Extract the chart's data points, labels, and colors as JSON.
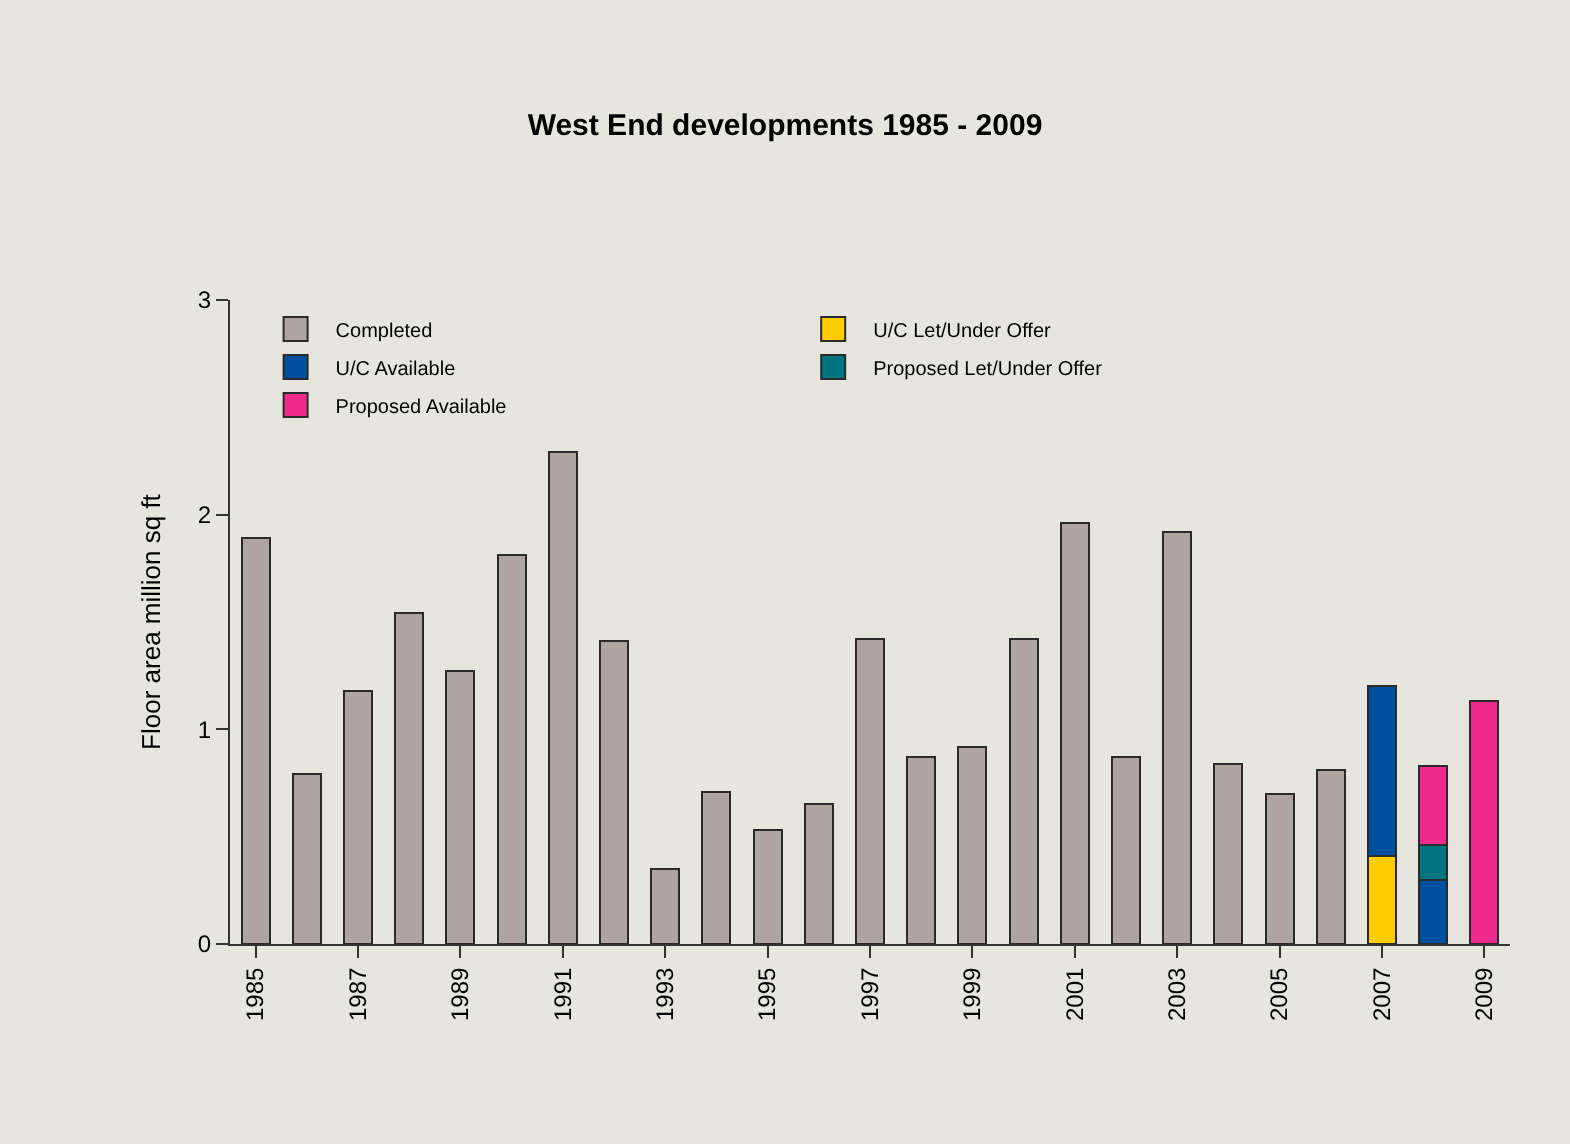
{
  "chart_data": {
    "type": "bar",
    "title": "West End developments 1985 - 2009",
    "ylabel": "Floor area million sq ft",
    "categories": [
      "1985",
      null,
      "1987",
      null,
      "1989",
      null,
      "1991",
      null,
      "1993",
      null,
      "1995",
      null,
      "1997",
      null,
      "1999",
      null,
      "2001",
      null,
      "2003",
      null,
      "2005",
      null,
      "2007",
      null,
      "2009"
    ],
    "stacked": true,
    "series": [
      {
        "name": "Completed",
        "color": "#aea5a1",
        "values": [
          1.89,
          0.79,
          1.18,
          1.54,
          1.27,
          1.81,
          2.29,
          1.41,
          0.35,
          0.71,
          0.53,
          0.65,
          1.42,
          0.87,
          0.92,
          1.42,
          1.96,
          0.87,
          1.92,
          0.84,
          0.7,
          0.81,
          null,
          null,
          null
        ]
      },
      {
        "name": "U/C Let/Under Offer",
        "color": "#ffcc00",
        "values": [
          null,
          null,
          null,
          null,
          null,
          null,
          null,
          null,
          null,
          null,
          null,
          null,
          null,
          null,
          null,
          null,
          null,
          null,
          null,
          null,
          null,
          null,
          0.41,
          null,
          null
        ]
      },
      {
        "name": "U/C Available",
        "color": "#0050a0",
        "values": [
          null,
          null,
          null,
          null,
          null,
          null,
          null,
          null,
          null,
          null,
          null,
          null,
          null,
          null,
          null,
          null,
          null,
          null,
          null,
          null,
          null,
          null,
          0.79,
          0.3,
          null
        ]
      },
      {
        "name": "Proposed Let/Under Offer",
        "color": "#00747f",
        "values": [
          null,
          null,
          null,
          null,
          null,
          null,
          null,
          null,
          null,
          null,
          null,
          null,
          null,
          null,
          null,
          null,
          null,
          null,
          null,
          null,
          null,
          null,
          null,
          0.16,
          null
        ]
      },
      {
        "name": "Proposed Available",
        "color": "#ee2a8c",
        "values": [
          null,
          null,
          null,
          null,
          null,
          null,
          null,
          null,
          null,
          null,
          null,
          null,
          null,
          null,
          null,
          null,
          null,
          null,
          null,
          null,
          null,
          null,
          null,
          0.37,
          1.13
        ]
      }
    ],
    "ylim": [
      0,
      3
    ],
    "yticks": [
      0,
      1,
      2,
      3
    ],
    "grid": false,
    "legend": "top left"
  }
}
